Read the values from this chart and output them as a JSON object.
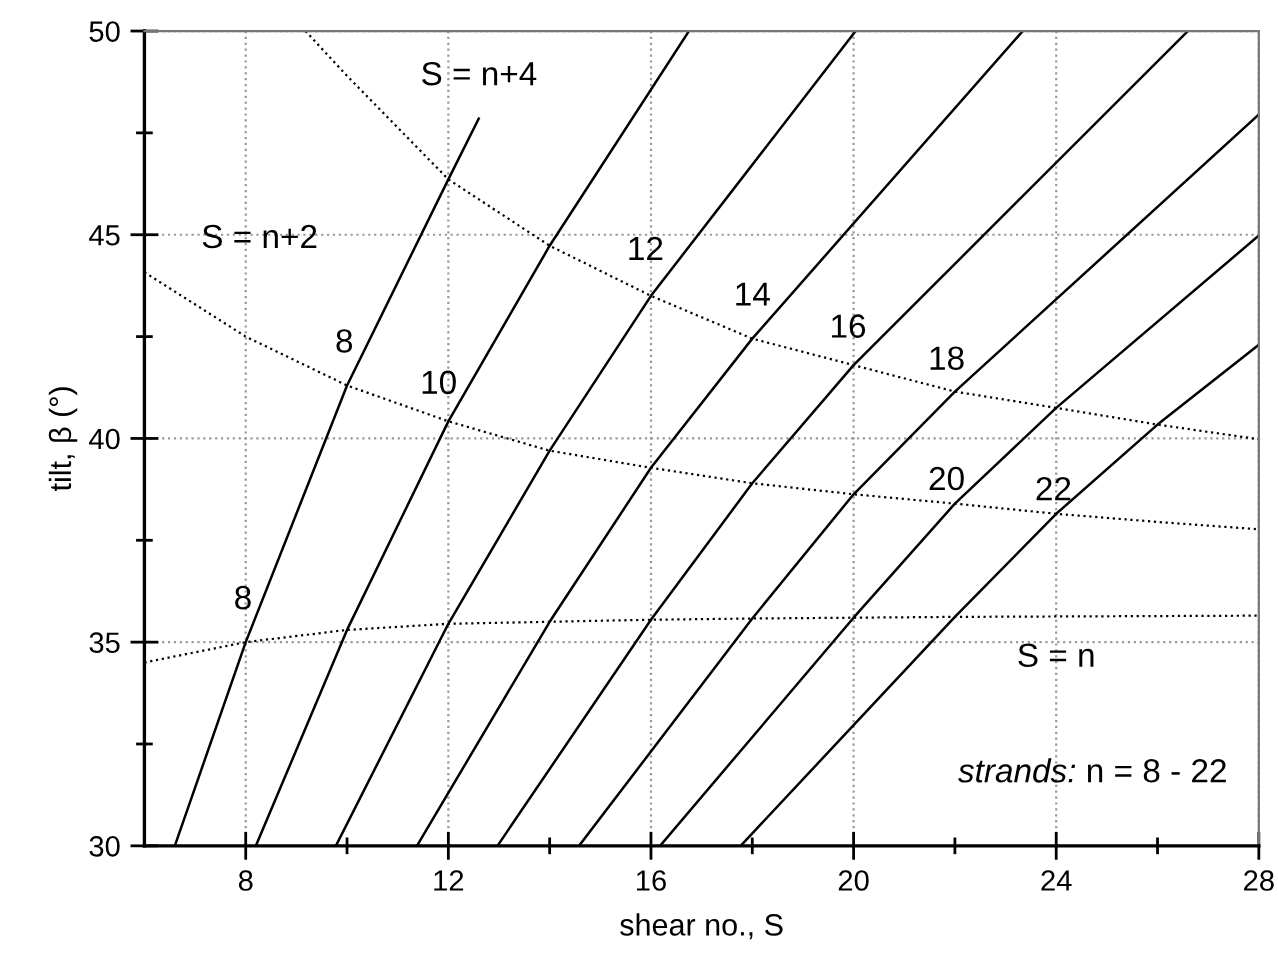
{
  "chart_data": {
    "type": "line",
    "xlabel": "shear no., S",
    "ylabel": "tilt, β (°)",
    "xlim": [
      6,
      28
    ],
    "ylim": [
      30,
      50
    ],
    "xticks": [
      8,
      {
        "value": 10,
        "label": null
      },
      12,
      {
        "value": 14,
        "label": null
      },
      16,
      {
        "value": 18,
        "label": null
      },
      20,
      {
        "value": 22,
        "label": null
      },
      24,
      {
        "value": 26,
        "label": null
      },
      28
    ],
    "yticks": [
      30,
      {
        "value": 32.5,
        "label": null
      },
      35,
      {
        "value": 37.5,
        "label": null
      },
      40,
      {
        "value": 42.5,
        "label": null
      },
      45,
      {
        "value": 47.5,
        "label": null
      },
      50
    ],
    "grid": true,
    "marker": "none",
    "series": [
      {
        "name": "8",
        "color": "#000000",
        "line_style": "solid",
        "x": [
          6.6,
          8,
          10,
          12,
          12.6
        ],
        "values": [
          30,
          35.0,
          41.3,
          46.36,
          47.85
        ]
      },
      {
        "name": "10",
        "color": "#000000",
        "line_style": "solid",
        "x": [
          8.2,
          10,
          12,
          14,
          16.75
        ],
        "values": [
          30,
          35.3,
          40.42,
          44.73,
          50
        ]
      },
      {
        "name": "12",
        "color": "#000000",
        "line_style": "solid",
        "x": [
          9.78,
          12,
          14,
          16,
          20.04
        ],
        "values": [
          30,
          35.45,
          39.7,
          43.5,
          50
        ]
      },
      {
        "name": "14",
        "color": "#000000",
        "line_style": "solid",
        "x": [
          11.38,
          14,
          16,
          18,
          23.34
        ],
        "values": [
          30,
          35.5,
          39.28,
          42.45,
          50
        ]
      },
      {
        "name": "16",
        "color": "#000000",
        "line_style": "solid",
        "x": [
          12.97,
          16,
          18,
          20,
          26.6
        ],
        "values": [
          30,
          35.55,
          38.9,
          41.8,
          50
        ]
      },
      {
        "name": "18",
        "color": "#000000",
        "line_style": "solid",
        "x": [
          14.58,
          18,
          20,
          22,
          28
        ],
        "values": [
          30,
          35.58,
          38.63,
          41.15,
          47.95
        ]
      },
      {
        "name": "20",
        "color": "#000000",
        "line_style": "solid",
        "x": [
          16.18,
          20,
          22,
          24,
          28
        ],
        "values": [
          30,
          35.6,
          38.4,
          40.75,
          44.98
        ]
      },
      {
        "name": "22",
        "color": "#000000",
        "line_style": "solid",
        "x": [
          17.77,
          22,
          24,
          26,
          28
        ],
        "values": [
          30,
          35.62,
          38.15,
          40.34,
          42.3
        ]
      },
      {
        "name": "S = n",
        "color": "#000000",
        "line_style": "dotted",
        "x": [
          6,
          8,
          10,
          12,
          14,
          16,
          18,
          20,
          22,
          24,
          26,
          28
        ],
        "values": [
          34.5,
          35.0,
          35.3,
          35.45,
          35.5,
          35.55,
          35.58,
          35.6,
          35.62,
          35.63,
          35.64,
          35.65
        ]
      },
      {
        "name": "S = n+2",
        "color": "#000000",
        "line_style": "dotted",
        "x": [
          6,
          8,
          10,
          12,
          14,
          16,
          18,
          20,
          22,
          24,
          26,
          28
        ],
        "values": [
          44.08,
          42.5,
          41.3,
          40.42,
          39.7,
          39.28,
          38.9,
          38.63,
          38.4,
          38.15,
          37.95,
          37.77
        ]
      },
      {
        "name": "S = n+4",
        "color": "#000000",
        "line_style": "dotted",
        "x": [
          9.18,
          10,
          12,
          14,
          16,
          18,
          20,
          22,
          24,
          26,
          28
        ],
        "values": [
          50,
          48.9,
          46.36,
          44.73,
          43.5,
          42.45,
          41.8,
          41.15,
          40.75,
          40.34,
          39.98
        ]
      }
    ],
    "annotations": [
      "strands: n = 8 - 22"
    ]
  }
}
